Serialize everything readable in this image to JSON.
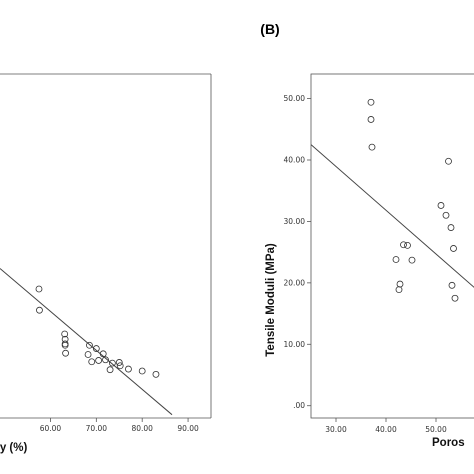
{
  "panel_b_label": "(B)",
  "chart_data": [
    {
      "type": "scatter",
      "xlabel": "ty (%)",
      "ylabel": "",
      "xlim": [
        49,
        95
      ],
      "ylim": [
        -2,
        50
      ],
      "x_ticks": [
        "60.00",
        "70.00",
        "80.00",
        "90.00"
      ],
      "y_ticks": [],
      "grid": false,
      "series": [
        {
          "x": [
            57.5,
            57.6,
            63.1,
            63.2,
            63.2,
            63.2,
            63.3,
            68.5,
            68.2,
            70.0,
            71.5,
            69.0,
            70.5,
            72.0,
            73.5,
            73.0,
            75.0,
            77.0,
            75.2,
            80.0,
            83.0
          ],
          "y": [
            17.5,
            14.3,
            10.7,
            9.9,
            9.2,
            9.0,
            7.8,
            9.0,
            7.6,
            8.5,
            7.7,
            6.5,
            6.7,
            6.8,
            6.3,
            5.3,
            6.4,
            5.4,
            5.9,
            5.1,
            4.6
          ]
        }
      ],
      "fit_line": {
        "x": [
          49,
          86.5
        ],
        "y": [
          20.6,
          -1.5
        ]
      }
    },
    {
      "type": "scatter",
      "xlabel": "Poros",
      "ylabel": "Tensile Moduli (MPa)",
      "xlim": [
        25,
        63
      ],
      "ylim": [
        -2,
        54
      ],
      "x_ticks": [
        "30.00",
        "40.00",
        "50.00"
      ],
      "y_ticks": [
        ".00",
        "10.00",
        "20.00",
        "30.00",
        "40.00",
        "50.00"
      ],
      "grid": false,
      "series": [
        {
          "x": [
            37.0,
            37.0,
            37.2,
            42.0,
            42.8,
            42.6,
            43.5,
            44.3,
            45.2,
            51.0,
            52.0,
            53.0,
            52.5,
            53.5,
            53.8,
            53.2
          ],
          "y": [
            49.4,
            46.6,
            42.1,
            23.8,
            19.8,
            18.9,
            26.2,
            26.1,
            23.7,
            32.6,
            31.0,
            29.0,
            39.8,
            25.6,
            17.5,
            19.6
          ]
        }
      ],
      "fit_line": {
        "x": [
          25,
          58
        ],
        "y": [
          42.5,
          19.0
        ]
      }
    }
  ]
}
